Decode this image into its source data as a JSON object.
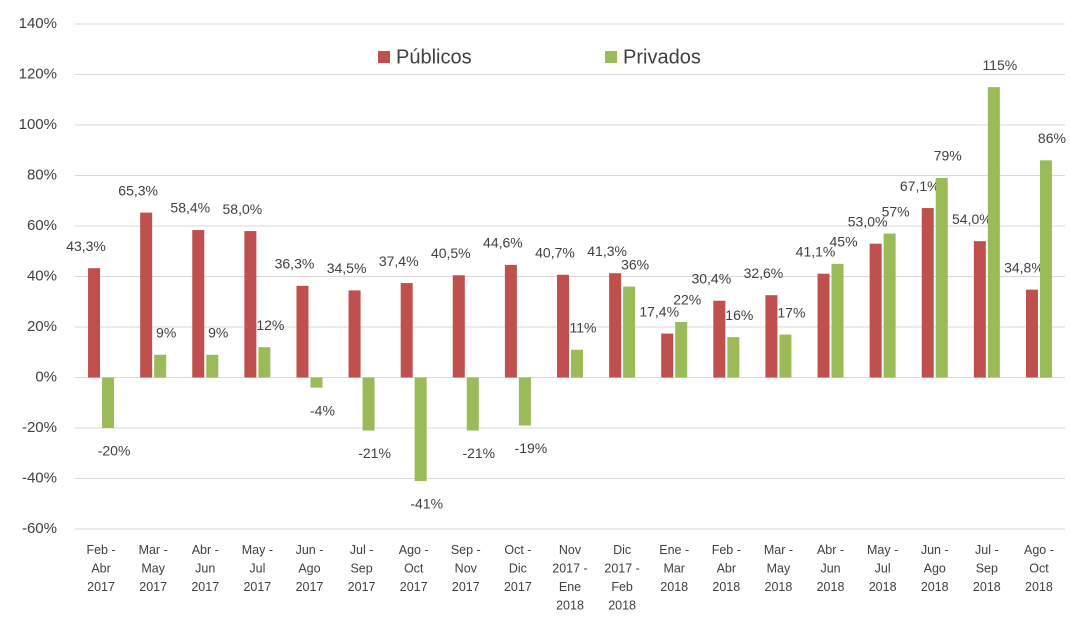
{
  "chart_data": {
    "type": "bar",
    "categories": [
      "Feb -\nAbr\n2017",
      "Mar -\nMay\n2017",
      "Abr -\nJun\n2017",
      "May -\nJul\n2017",
      "Jun -\nAgo\n2017",
      "Jul -\nSep\n2017",
      "Ago -\nOct\n2017",
      "Sep -\nNov\n2017",
      "Oct -\nDic\n2017",
      "Nov\n2017 -\nEne\n2018",
      "Dic\n2017 -\nFeb\n2018",
      "Ene -\nMar\n2018",
      "Feb -\nAbr\n2018",
      "Mar -\nMay\n2018",
      "Abr -\nJun\n2018",
      "May -\nJul\n2018",
      "Jun -\nAgo\n2018",
      "Jul -\nSep\n2018",
      "Ago -\nOct\n2018"
    ],
    "series": [
      {
        "name": "Públicos",
        "color": "#c0504d",
        "values": [
          43.3,
          65.3,
          58.4,
          58.0,
          36.3,
          34.5,
          37.4,
          40.5,
          44.6,
          40.7,
          41.3,
          17.4,
          30.4,
          32.6,
          41.1,
          53.0,
          67.1,
          54.0,
          34.8
        ],
        "value_labels": [
          "43,3%",
          "65,3%",
          "58,4%",
          "58,0%",
          "36,3%",
          "34,5%",
          "37,4%",
          "40,5%",
          "44,6%",
          "40,7%",
          "41,3%",
          "17,4%",
          "30,4%",
          "32,6%",
          "41,1%",
          "53,0%",
          "67,1%",
          "54,0%",
          "34,8%"
        ]
      },
      {
        "name": "Privados",
        "color": "#9bbb59",
        "values": [
          -20,
          9,
          9,
          12,
          -4,
          -21,
          -41,
          -21,
          -19,
          11,
          36,
          22,
          16,
          17,
          45,
          57,
          79,
          115,
          86
        ],
        "value_labels": [
          "-20%",
          "9%",
          "9%",
          "12%",
          "-4%",
          "-21%",
          "-41%",
          "-21%",
          "-19%",
          "11%",
          "36%",
          "22%",
          "16%",
          "17%",
          "45%",
          "57%",
          "79%",
          "115%",
          "86%"
        ]
      }
    ],
    "ylim": [
      -60,
      140
    ],
    "yticks": [
      {
        "value": -60,
        "label": "-60%"
      },
      {
        "value": -40,
        "label": "-40%"
      },
      {
        "value": -20,
        "label": "-20%"
      },
      {
        "value": 0,
        "label": "0%"
      },
      {
        "value": 20,
        "label": "20%"
      },
      {
        "value": 40,
        "label": "40%"
      },
      {
        "value": 60,
        "label": "60%"
      },
      {
        "value": 80,
        "label": "80%"
      },
      {
        "value": 100,
        "label": "100%"
      },
      {
        "value": 120,
        "label": "120%"
      },
      {
        "value": 140,
        "label": "140%"
      }
    ],
    "grid": true,
    "legend": "top"
  }
}
